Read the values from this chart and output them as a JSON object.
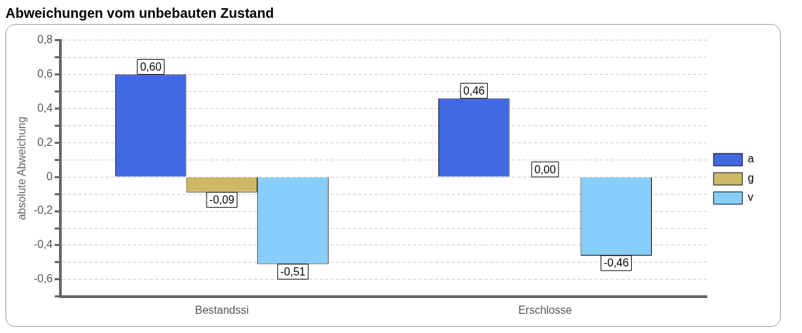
{
  "chart_data": {
    "type": "bar",
    "title": "Abweichungen vom unbebauten Zustand",
    "ylabel": "absolute Abweichung",
    "categories": [
      "Bestandssi",
      "Erschlosse"
    ],
    "series": [
      {
        "name": "a",
        "color": "#4169e1",
        "values": [
          0.6,
          0.46
        ],
        "value_labels": [
          "0,60",
          "0,46"
        ]
      },
      {
        "name": "g",
        "color": "#cdb965",
        "values": [
          -0.09,
          0.0
        ],
        "value_labels": [
          "-0,09",
          "0,00"
        ]
      },
      {
        "name": "v",
        "color": "#87cefa",
        "values": [
          -0.51,
          -0.46
        ],
        "value_labels": [
          "-0,51",
          "-0,46"
        ]
      }
    ],
    "ylim": [
      -0.7,
      0.8
    ],
    "yticks": [
      {
        "value": -0.7,
        "label": null
      },
      {
        "value": -0.6,
        "label": "-0,6"
      },
      {
        "value": -0.5,
        "label": null
      },
      {
        "value": -0.4,
        "label": "-0,4"
      },
      {
        "value": -0.3,
        "label": null
      },
      {
        "value": -0.2,
        "label": "-0,2"
      },
      {
        "value": -0.1,
        "label": null
      },
      0,
      {
        "value": 0.1,
        "label": null
      },
      {
        "value": 0.2,
        "label": "0,2"
      },
      {
        "value": 0.3,
        "label": null
      },
      {
        "value": 0.4,
        "label": "0,4"
      },
      {
        "value": 0.5,
        "label": null
      },
      {
        "value": 0.6,
        "label": "0,6"
      },
      {
        "value": 0.7,
        "label": null
      },
      {
        "value": 0.8,
        "label": "0,8"
      }
    ],
    "grid": "y",
    "legend": "right"
  }
}
